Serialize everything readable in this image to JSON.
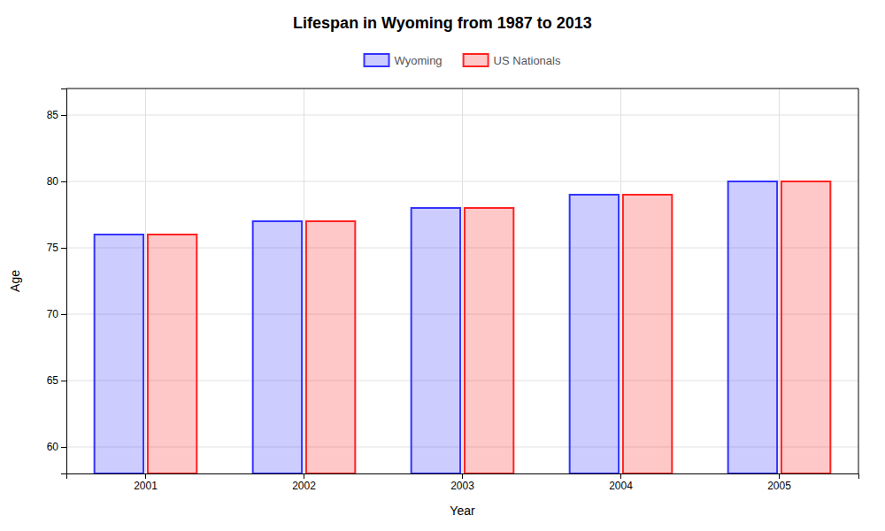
{
  "chart_data": {
    "type": "bar",
    "title": "Lifespan in Wyoming from 1987 to 2013",
    "xlabel": "Year",
    "ylabel": "Age",
    "categories": [
      "2001",
      "2002",
      "2003",
      "2004",
      "2005"
    ],
    "series": [
      {
        "name": "Wyoming",
        "color": "#3333ff",
        "values": [
          76,
          77,
          78,
          79,
          80
        ]
      },
      {
        "name": "US Nationals",
        "color": "#ff2222",
        "values": [
          76,
          77,
          78,
          79,
          80
        ]
      }
    ],
    "ylim": [
      58,
      87
    ],
    "yticks": [
      60,
      65,
      70,
      75,
      80,
      85
    ],
    "grid": true,
    "legend": "top"
  }
}
